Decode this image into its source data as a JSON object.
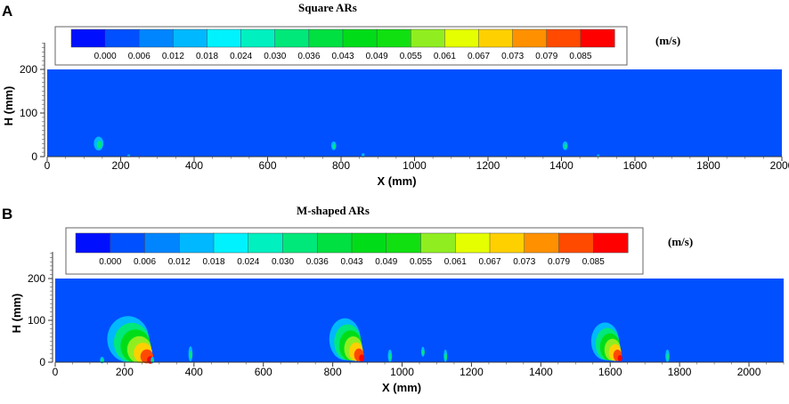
{
  "colorbar": {
    "colors": [
      "#0010ff",
      "#0050ff",
      "#0085ff",
      "#00b8ff",
      "#00f2ff",
      "#00f0c0",
      "#00e87a",
      "#00e040",
      "#00dd18",
      "#10e010",
      "#90ee20",
      "#e5ff00",
      "#ffd000",
      "#ff9000",
      "#ff4a00",
      "#ff0000"
    ],
    "tick_labels": [
      "0.000",
      "0.006",
      "0.012",
      "0.018",
      "0.024",
      "0.030",
      "0.036",
      "0.043",
      "0.049",
      "0.055",
      "0.061",
      "0.067",
      "0.073",
      "0.079",
      "0.085"
    ]
  },
  "chart_data": [
    {
      "type": "heatmap",
      "panel_label": "A",
      "title": "Square ARs",
      "unit": "(m/s)",
      "xlabel": "X (mm)",
      "ylabel": "H (mm)",
      "xlim": [
        0,
        2000
      ],
      "ylim": [
        0,
        200
      ],
      "background_value": 0.0,
      "x_ticks": [
        0,
        200,
        400,
        600,
        800,
        1000,
        1200,
        1400,
        1600,
        1800,
        2000
      ],
      "y_ticks": [
        0,
        100,
        200
      ],
      "hotspots": [
        {
          "x": 140,
          "y": 30,
          "rx": 13,
          "ry": 16,
          "peak_velocity": 0.033
        },
        {
          "x": 780,
          "y": 25,
          "rx": 7,
          "ry": 10,
          "peak_velocity": 0.03
        },
        {
          "x": 1410,
          "y": 25,
          "rx": 7,
          "ry": 10,
          "peak_velocity": 0.03
        },
        {
          "x": 860,
          "y": 3,
          "rx": 4,
          "ry": 5,
          "peak_velocity": 0.024
        },
        {
          "x": 222,
          "y": 2,
          "rx": 3,
          "ry": 3,
          "peak_velocity": 0.018
        },
        {
          "x": 1500,
          "y": 2,
          "rx": 3,
          "ry": 3,
          "peak_velocity": 0.018
        }
      ]
    },
    {
      "type": "heatmap",
      "panel_label": "B",
      "title": "M-shaped ARs",
      "unit": "(m/s)",
      "xlabel": "X (mm)",
      "ylabel": "H (mm)",
      "xlim": [
        0,
        2100
      ],
      "ylim": [
        0,
        200
      ],
      "background_value": 0.0,
      "x_ticks": [
        0,
        200,
        400,
        600,
        800,
        1000,
        1200,
        1400,
        1600,
        1800,
        2000
      ],
      "y_ticks": [
        0,
        100,
        200
      ],
      "hotspots": [
        {
          "x": 210,
          "y": 55,
          "rx": 60,
          "ry": 55,
          "peak_velocity": 0.085
        },
        {
          "x": 835,
          "y": 55,
          "rx": 45,
          "ry": 50,
          "peak_velocity": 0.085
        },
        {
          "x": 1585,
          "y": 50,
          "rx": 40,
          "ry": 45,
          "peak_velocity": 0.085
        },
        {
          "x": 390,
          "y": 20,
          "rx": 6,
          "ry": 18,
          "peak_velocity": 0.036
        },
        {
          "x": 135,
          "y": 5,
          "rx": 6,
          "ry": 8,
          "peak_velocity": 0.03
        },
        {
          "x": 280,
          "y": 5,
          "rx": 5,
          "ry": 8,
          "peak_velocity": 0.03
        },
        {
          "x": 965,
          "y": 15,
          "rx": 6,
          "ry": 15,
          "peak_velocity": 0.036
        },
        {
          "x": 1060,
          "y": 25,
          "rx": 5,
          "ry": 12,
          "peak_velocity": 0.03
        },
        {
          "x": 1125,
          "y": 15,
          "rx": 5,
          "ry": 15,
          "peak_velocity": 0.03
        },
        {
          "x": 1765,
          "y": 15,
          "rx": 6,
          "ry": 15,
          "peak_velocity": 0.03
        }
      ]
    }
  ]
}
